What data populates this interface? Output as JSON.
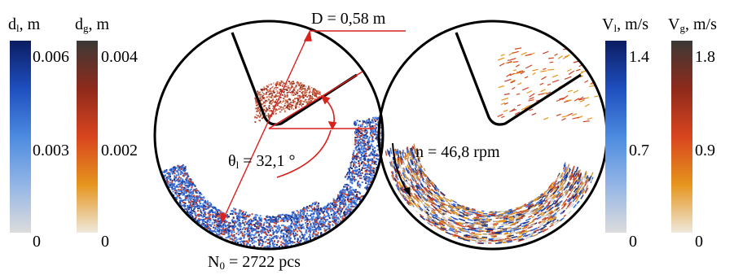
{
  "colorbars": {
    "d_l": {
      "symbol": "d",
      "subscript": "l",
      "unit": ", m",
      "ticks": [
        "0.006",
        "0.003",
        "0"
      ],
      "colors": [
        "#0b1c62",
        "#1f4fbf",
        "#4c8be0",
        "#93b5e6",
        "#dcdcdc"
      ]
    },
    "d_g": {
      "symbol": "d",
      "subscript": "g",
      "unit": ", m",
      "ticks": [
        "0.004",
        "0.002",
        "0"
      ],
      "colors": [
        "#3b3936",
        "#8e2a1c",
        "#d9451f",
        "#e5951d",
        "#efe8dc"
      ]
    },
    "v_l": {
      "symbol": "V",
      "subscript": "l",
      "unit": ", m/s",
      "ticks": [
        "1.4",
        "0.7",
        "0"
      ],
      "colors": [
        "#0b1c62",
        "#1f4fbf",
        "#4c8be0",
        "#93b5e6",
        "#dcdcdc"
      ]
    },
    "v_g": {
      "symbol": "V",
      "subscript": "g",
      "unit": ", m/s",
      "ticks": [
        "1.8",
        "0.9",
        "0"
      ],
      "colors": [
        "#3b3936",
        "#8e2a1c",
        "#d9451f",
        "#e5951d",
        "#efe8dc"
      ]
    }
  },
  "annotations": {
    "diameter": "D = 0,58 m",
    "angle_symbol": "θ",
    "angle_subscript": "l",
    "angle_value": " = 32,1 °",
    "speed": "n = 46,8 rpm",
    "count_symbol": "N",
    "count_subscript": "0",
    "count_value": " = 2722  pcs"
  },
  "colors": {
    "outline": "#000000",
    "annotation": "#d9211d",
    "particle_blue": "#2f66d8",
    "particle_red": "#c9412a",
    "particle_dark": "#1d2f7a"
  }
}
